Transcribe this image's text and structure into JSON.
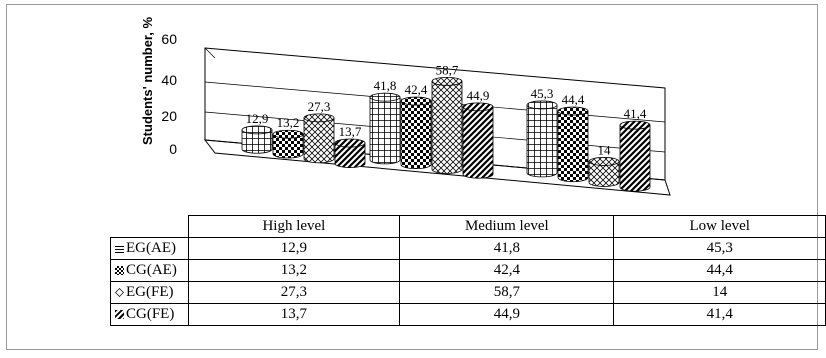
{
  "chart_data": {
    "type": "bar",
    "ylabel": "Students' number, %",
    "y_ticks": [
      "0",
      "20",
      "40",
      "60"
    ],
    "ylim": [
      0,
      60
    ],
    "categories": [
      "High level",
      "Medium level",
      "Low level"
    ],
    "series": [
      {
        "name": "EG(AE)",
        "values": [
          12.9,
          41.8,
          45.3
        ],
        "labels": [
          "12,9",
          "41,8",
          "45,3"
        ],
        "pattern": "grid"
      },
      {
        "name": "CG(AE)",
        "values": [
          13.2,
          42.4,
          44.4
        ],
        "labels": [
          "13,2",
          "42,4",
          "44,4"
        ],
        "pattern": "checker"
      },
      {
        "name": "EG(FE)",
        "values": [
          27.3,
          58.7,
          14
        ],
        "labels": [
          "27,3",
          "58,7",
          "14"
        ],
        "pattern": "diamond"
      },
      {
        "name": "CG(FE)",
        "values": [
          13.7,
          44.9,
          41.4
        ],
        "labels": [
          "13,7",
          "44,9",
          "41,4"
        ],
        "pattern": "diagonal"
      }
    ],
    "legend_placement": "data-table-rows",
    "grid": true
  }
}
